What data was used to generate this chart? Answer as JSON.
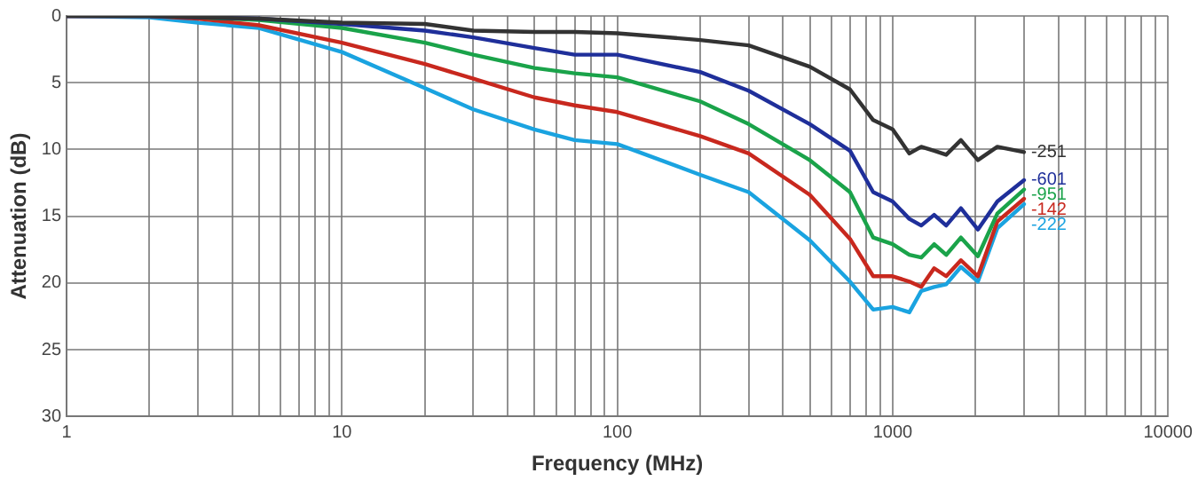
{
  "chart_data": {
    "type": "line",
    "xlabel": "Frequency (MHz)",
    "ylabel": "Attenuation (dB)",
    "log": "x",
    "grid": true,
    "legend": false,
    "marker": "none",
    "line_style": "solid",
    "xlim": [
      1,
      10000
    ],
    "ylim": [
      30,
      0
    ],
    "yticks": [
      0,
      5,
      10,
      15,
      20,
      25,
      30
    ],
    "xticks": [
      1,
      {
        "value": 2,
        "label": null
      },
      {
        "value": 3,
        "label": null
      },
      {
        "value": 4,
        "label": null
      },
      {
        "value": 5,
        "label": null
      },
      {
        "value": 6,
        "label": null
      },
      {
        "value": 7,
        "label": null
      },
      {
        "value": 8,
        "label": null
      },
      {
        "value": 9,
        "label": null
      },
      10,
      {
        "value": 20,
        "label": null
      },
      {
        "value": 30,
        "label": null
      },
      {
        "value": 40,
        "label": null
      },
      {
        "value": 50,
        "label": null
      },
      {
        "value": 60,
        "label": null
      },
      {
        "value": 70,
        "label": null
      },
      {
        "value": 80,
        "label": null
      },
      {
        "value": 90,
        "label": null
      },
      100,
      {
        "value": 200,
        "label": null
      },
      {
        "value": 300,
        "label": null
      },
      {
        "value": 400,
        "label": null
      },
      {
        "value": 500,
        "label": null
      },
      {
        "value": 600,
        "label": null
      },
      {
        "value": 700,
        "label": null
      },
      {
        "value": 800,
        "label": null
      },
      {
        "value": 900,
        "label": null
      },
      1000,
      {
        "value": 2000,
        "label": null
      },
      {
        "value": 3000,
        "label": null
      },
      {
        "value": 4000,
        "label": null
      },
      {
        "value": 5000,
        "label": null
      },
      {
        "value": 6000,
        "label": null
      },
      {
        "value": 7000,
        "label": null
      },
      {
        "value": 8000,
        "label": null
      },
      {
        "value": 9000,
        "label": null
      },
      10000
    ],
    "x": [
      1,
      2,
      3,
      5,
      10,
      20,
      30,
      50,
      70,
      100,
      200,
      300,
      500,
      700,
      850,
      1000,
      1150,
      1270,
      1415,
      1565,
      1770,
      2040,
      2400,
      3000
    ],
    "series": [
      {
        "name": "-251",
        "color": "#333333",
        "values": [
          0,
          0,
          0.1,
          0.2,
          0.5,
          0.6,
          1.1,
          1.2,
          1.2,
          1.3,
          1.8,
          2.2,
          3.8,
          5.5,
          7.8,
          8.5,
          10.3,
          9.8,
          10.1,
          10.4,
          9.3,
          10.8,
          9.8,
          10.2
        ]
      },
      {
        "name": "-601",
        "color": "#1f2f9a",
        "values": [
          0,
          0,
          0.1,
          0.2,
          0.6,
          1.1,
          1.6,
          2.4,
          2.9,
          2.9,
          4.2,
          5.6,
          8.1,
          10.1,
          13.2,
          13.9,
          15.2,
          15.7,
          14.9,
          15.7,
          14.4,
          16.0,
          13.9,
          12.3
        ]
      },
      {
        "name": "-951",
        "color": "#1aa34a",
        "values": [
          null,
          null,
          0.1,
          0.3,
          0.9,
          2.0,
          2.9,
          3.9,
          4.3,
          4.6,
          6.4,
          8.1,
          10.8,
          13.2,
          16.6,
          17.1,
          17.9,
          18.1,
          17.1,
          17.9,
          16.6,
          18.0,
          14.8,
          13.0
        ]
      },
      {
        "name": "-142",
        "color": "#c8281e",
        "values": [
          0,
          0,
          0.2,
          0.7,
          2.0,
          3.6,
          4.7,
          6.1,
          6.7,
          7.2,
          9.0,
          10.3,
          13.4,
          16.7,
          19.5,
          19.5,
          19.9,
          20.3,
          18.9,
          19.5,
          18.3,
          19.5,
          15.4,
          13.7
        ]
      },
      {
        "name": "-222",
        "color": "#1aa3e0",
        "values": [
          0,
          0.1,
          0.5,
          0.9,
          2.7,
          5.4,
          7.0,
          8.5,
          9.3,
          9.6,
          11.9,
          13.2,
          16.8,
          19.9,
          22.0,
          21.8,
          22.2,
          20.6,
          20.3,
          20.1,
          18.8,
          19.9,
          15.9,
          14.1
        ]
      }
    ]
  }
}
